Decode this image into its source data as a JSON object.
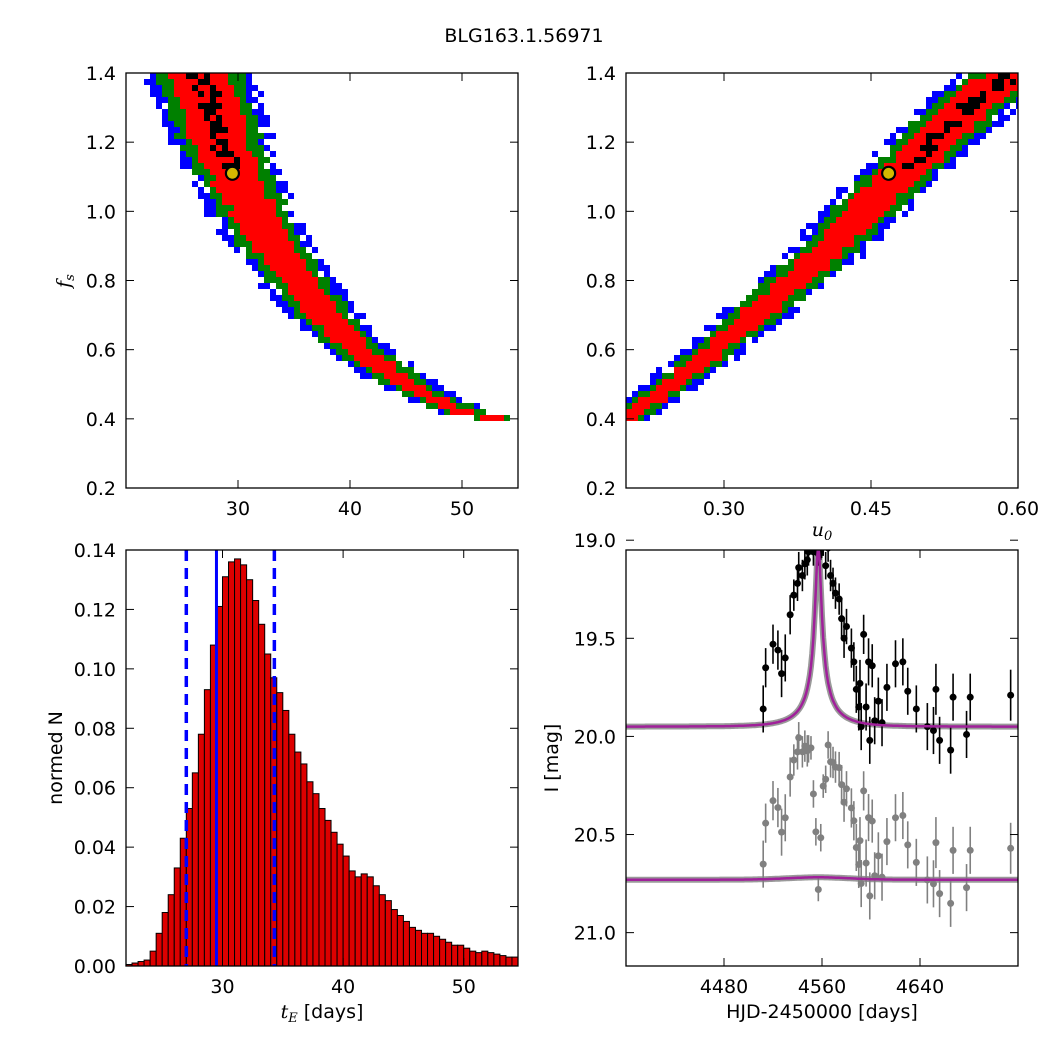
{
  "figure_title": "BLG163.1.56971",
  "colors": {
    "sigma1": "#ff0000",
    "sigma2": "#008000",
    "sigma3": "#0000ff",
    "best": "#000000",
    "bestfit_marker_fill": "#d4b800",
    "hist_bar": "#dd0000",
    "hist_line": "#0000ff",
    "data_points": "#000000",
    "residual_points": "#808080",
    "model_line": "#a0209a",
    "model_band": "#7f7f7f"
  },
  "chart_data": [
    {
      "type": "heatmap",
      "panel": "top-left",
      "xlabel": "",
      "ylabel": "f_s",
      "xlim": [
        20,
        55
      ],
      "ylim": [
        0.2,
        1.4
      ],
      "xticks": [
        "30",
        "40",
        "50"
      ],
      "yticks": [
        "0.2",
        "0.4",
        "0.6",
        "0.8",
        "1.0",
        "1.2",
        "1.4"
      ],
      "best_fit": {
        "x": 29.5,
        "y": 1.11
      },
      "ridge": [
        [
          26.5,
          1.4
        ],
        [
          28.5,
          1.2
        ],
        [
          30.5,
          1.05
        ],
        [
          33.0,
          0.9
        ],
        [
          36.5,
          0.75
        ],
        [
          40.0,
          0.62
        ],
        [
          45.0,
          0.5
        ],
        [
          50.0,
          0.42
        ],
        [
          53.0,
          0.4
        ]
      ],
      "levels": [
        "1 sigma (red)",
        "2 sigma (green)",
        "3 sigma (blue)",
        "best (black)"
      ]
    },
    {
      "type": "heatmap",
      "panel": "top-right",
      "xlabel": "u_0",
      "ylabel": "",
      "xlim": [
        0.2,
        0.6
      ],
      "ylim": [
        0.2,
        1.4
      ],
      "xticks": [
        "0.30",
        "0.45",
        "0.60"
      ],
      "yticks": [
        "0.2",
        "0.4",
        "0.6",
        "0.8",
        "1.0",
        "1.2",
        "1.4"
      ],
      "best_fit": {
        "x": 0.468,
        "y": 1.11
      },
      "ridge": [
        [
          0.2,
          0.4
        ],
        [
          0.27,
          0.55
        ],
        [
          0.34,
          0.72
        ],
        [
          0.4,
          0.87
        ],
        [
          0.46,
          1.05
        ],
        [
          0.52,
          1.22
        ],
        [
          0.56,
          1.33
        ],
        [
          0.6,
          1.41
        ]
      ],
      "levels": [
        "1 sigma (red)",
        "2 sigma (green)",
        "3 sigma (blue)",
        "best (black)"
      ]
    },
    {
      "type": "bar",
      "panel": "bottom-left",
      "xlabel": "t_E [days]",
      "ylabel": "normed N",
      "xlim": [
        22,
        54.5
      ],
      "ylim": [
        0,
        0.14
      ],
      "xticks": [
        "30",
        "40",
        "50"
      ],
      "yticks": [
        "0.00",
        "0.02",
        "0.04",
        "0.06",
        "0.08",
        "0.10",
        "0.12",
        "0.14"
      ],
      "bin_width": 0.5,
      "bin_start": 22,
      "values": [
        0.0005,
        0.001,
        0.0015,
        0.002,
        0.005,
        0.011,
        0.018,
        0.024,
        0.033,
        0.043,
        0.053,
        0.065,
        0.078,
        0.093,
        0.108,
        0.121,
        0.131,
        0.136,
        0.137,
        0.135,
        0.13,
        0.123,
        0.115,
        0.105,
        0.097,
        0.092,
        0.086,
        0.078,
        0.072,
        0.068,
        0.062,
        0.058,
        0.053,
        0.049,
        0.045,
        0.041,
        0.037,
        0.032,
        0.03,
        0.031,
        0.03,
        0.027,
        0.024,
        0.022,
        0.019,
        0.017,
        0.015,
        0.013,
        0.012,
        0.011,
        0.011,
        0.01,
        0.009,
        0.008,
        0.007,
        0.007,
        0.006,
        0.005,
        0.0045,
        0.005,
        0.0045,
        0.004,
        0.0035,
        0.003,
        0.003,
        0.0025,
        0.0025,
        0.002,
        0.002,
        0.002,
        0.0015,
        0.0015,
        0.001,
        0.001,
        0.001,
        0.001,
        0.0008,
        0.0006,
        0.0005,
        0.0003,
        0.0002,
        0.0002,
        0.0001
      ],
      "median": 29.5,
      "lower": 27.0,
      "upper": 34.3
    },
    {
      "type": "scatter",
      "panel": "bottom-right",
      "xlabel": "HJD-2450000 [days]",
      "ylabel": "I [mag]",
      "xlim": [
        4400,
        4720
      ],
      "ylim": [
        21.17,
        19.05
      ],
      "ylim_note": "inverted magnitude axis",
      "xticks": [
        "4480",
        "4560",
        "4640"
      ],
      "yticks": [
        "19.0",
        "19.5",
        "20.0",
        "20.5",
        "21.0"
      ],
      "model": {
        "t0": 4557,
        "baseline": 19.95,
        "peak": 19.02,
        "tE": 29.5
      },
      "residual_offset": 20.73,
      "data": [
        {
          "x": 4512,
          "y": 19.86,
          "e": 0.12
        },
        {
          "x": 4514,
          "y": 19.65,
          "e": 0.1
        },
        {
          "x": 4520,
          "y": 19.53,
          "e": 0.1
        },
        {
          "x": 4524,
          "y": 19.56,
          "e": 0.1
        },
        {
          "x": 4527,
          "y": 19.68,
          "e": 0.12
        },
        {
          "x": 4530,
          "y": 19.6,
          "e": 0.12
        },
        {
          "x": 4534,
          "y": 19.38,
          "e": 0.1
        },
        {
          "x": 4537,
          "y": 19.28,
          "e": 0.08
        },
        {
          "x": 4540,
          "y": 19.22,
          "e": 0.09
        },
        {
          "x": 4541,
          "y": 19.14,
          "e": 0.08
        },
        {
          "x": 4544,
          "y": 19.18,
          "e": 0.08
        },
        {
          "x": 4546,
          "y": 19.12,
          "e": 0.08
        },
        {
          "x": 4548,
          "y": 19.1,
          "e": 0.08
        },
        {
          "x": 4549,
          "y": 19.06,
          "e": 0.07
        },
        {
          "x": 4551,
          "y": 18.97,
          "e": 0.06
        },
        {
          "x": 4553,
          "y": 19.06,
          "e": 0.07
        },
        {
          "x": 4555,
          "y": 19.0,
          "e": 0.07
        },
        {
          "x": 4557,
          "y": 19.07,
          "e": 0.06
        },
        {
          "x": 4559,
          "y": 19.03,
          "e": 0.07
        },
        {
          "x": 4561,
          "y": 19.02,
          "e": 0.06
        },
        {
          "x": 4563,
          "y": 19.13,
          "e": 0.07
        },
        {
          "x": 4565,
          "y": 19.04,
          "e": 0.07
        },
        {
          "x": 4567,
          "y": 19.18,
          "e": 0.08
        },
        {
          "x": 4569,
          "y": 19.22,
          "e": 0.08
        },
        {
          "x": 4571,
          "y": 19.27,
          "e": 0.08
        },
        {
          "x": 4574,
          "y": 19.3,
          "e": 0.08
        },
        {
          "x": 4576,
          "y": 19.4,
          "e": 0.1
        },
        {
          "x": 4578,
          "y": 19.5,
          "e": 0.1
        },
        {
          "x": 4580,
          "y": 19.44,
          "e": 0.09
        },
        {
          "x": 4584,
          "y": 19.55,
          "e": 0.1
        },
        {
          "x": 4586,
          "y": 19.62,
          "e": 0.1
        },
        {
          "x": 4588,
          "y": 19.76,
          "e": 0.12
        },
        {
          "x": 4590,
          "y": 19.85,
          "e": 0.12
        },
        {
          "x": 4591,
          "y": 19.73,
          "e": 0.12
        },
        {
          "x": 4592,
          "y": 19.95,
          "e": 0.12
        },
        {
          "x": 4594,
          "y": 19.48,
          "e": 0.1
        },
        {
          "x": 4596,
          "y": 19.85,
          "e": 0.12
        },
        {
          "x": 4598,
          "y": 19.62,
          "e": 0.12
        },
        {
          "x": 4599,
          "y": 20.02,
          "e": 0.12
        },
        {
          "x": 4601,
          "y": 19.64,
          "e": 0.11
        },
        {
          "x": 4603,
          "y": 19.92,
          "e": 0.12
        },
        {
          "x": 4606,
          "y": 19.82,
          "e": 0.12
        },
        {
          "x": 4609,
          "y": 19.93,
          "e": 0.12
        },
        {
          "x": 4613,
          "y": 19.75,
          "e": 0.12
        },
        {
          "x": 4620,
          "y": 19.63,
          "e": 0.12
        },
        {
          "x": 4626,
          "y": 19.62,
          "e": 0.12
        },
        {
          "x": 4630,
          "y": 19.77,
          "e": 0.12
        },
        {
          "x": 4637,
          "y": 19.86,
          "e": 0.12
        },
        {
          "x": 4646,
          "y": 19.95,
          "e": 0.12
        },
        {
          "x": 4651,
          "y": 19.97,
          "e": 0.12
        },
        {
          "x": 4653,
          "y": 19.76,
          "e": 0.13
        },
        {
          "x": 4656,
          "y": 20.02,
          "e": 0.12
        },
        {
          "x": 4665,
          "y": 20.07,
          "e": 0.12
        },
        {
          "x": 4667,
          "y": 19.8,
          "e": 0.12
        },
        {
          "x": 4678,
          "y": 19.99,
          "e": 0.12
        },
        {
          "x": 4681,
          "y": 19.8,
          "e": 0.12
        },
        {
          "x": 4714,
          "y": 19.79,
          "e": 0.13
        }
      ]
    }
  ]
}
